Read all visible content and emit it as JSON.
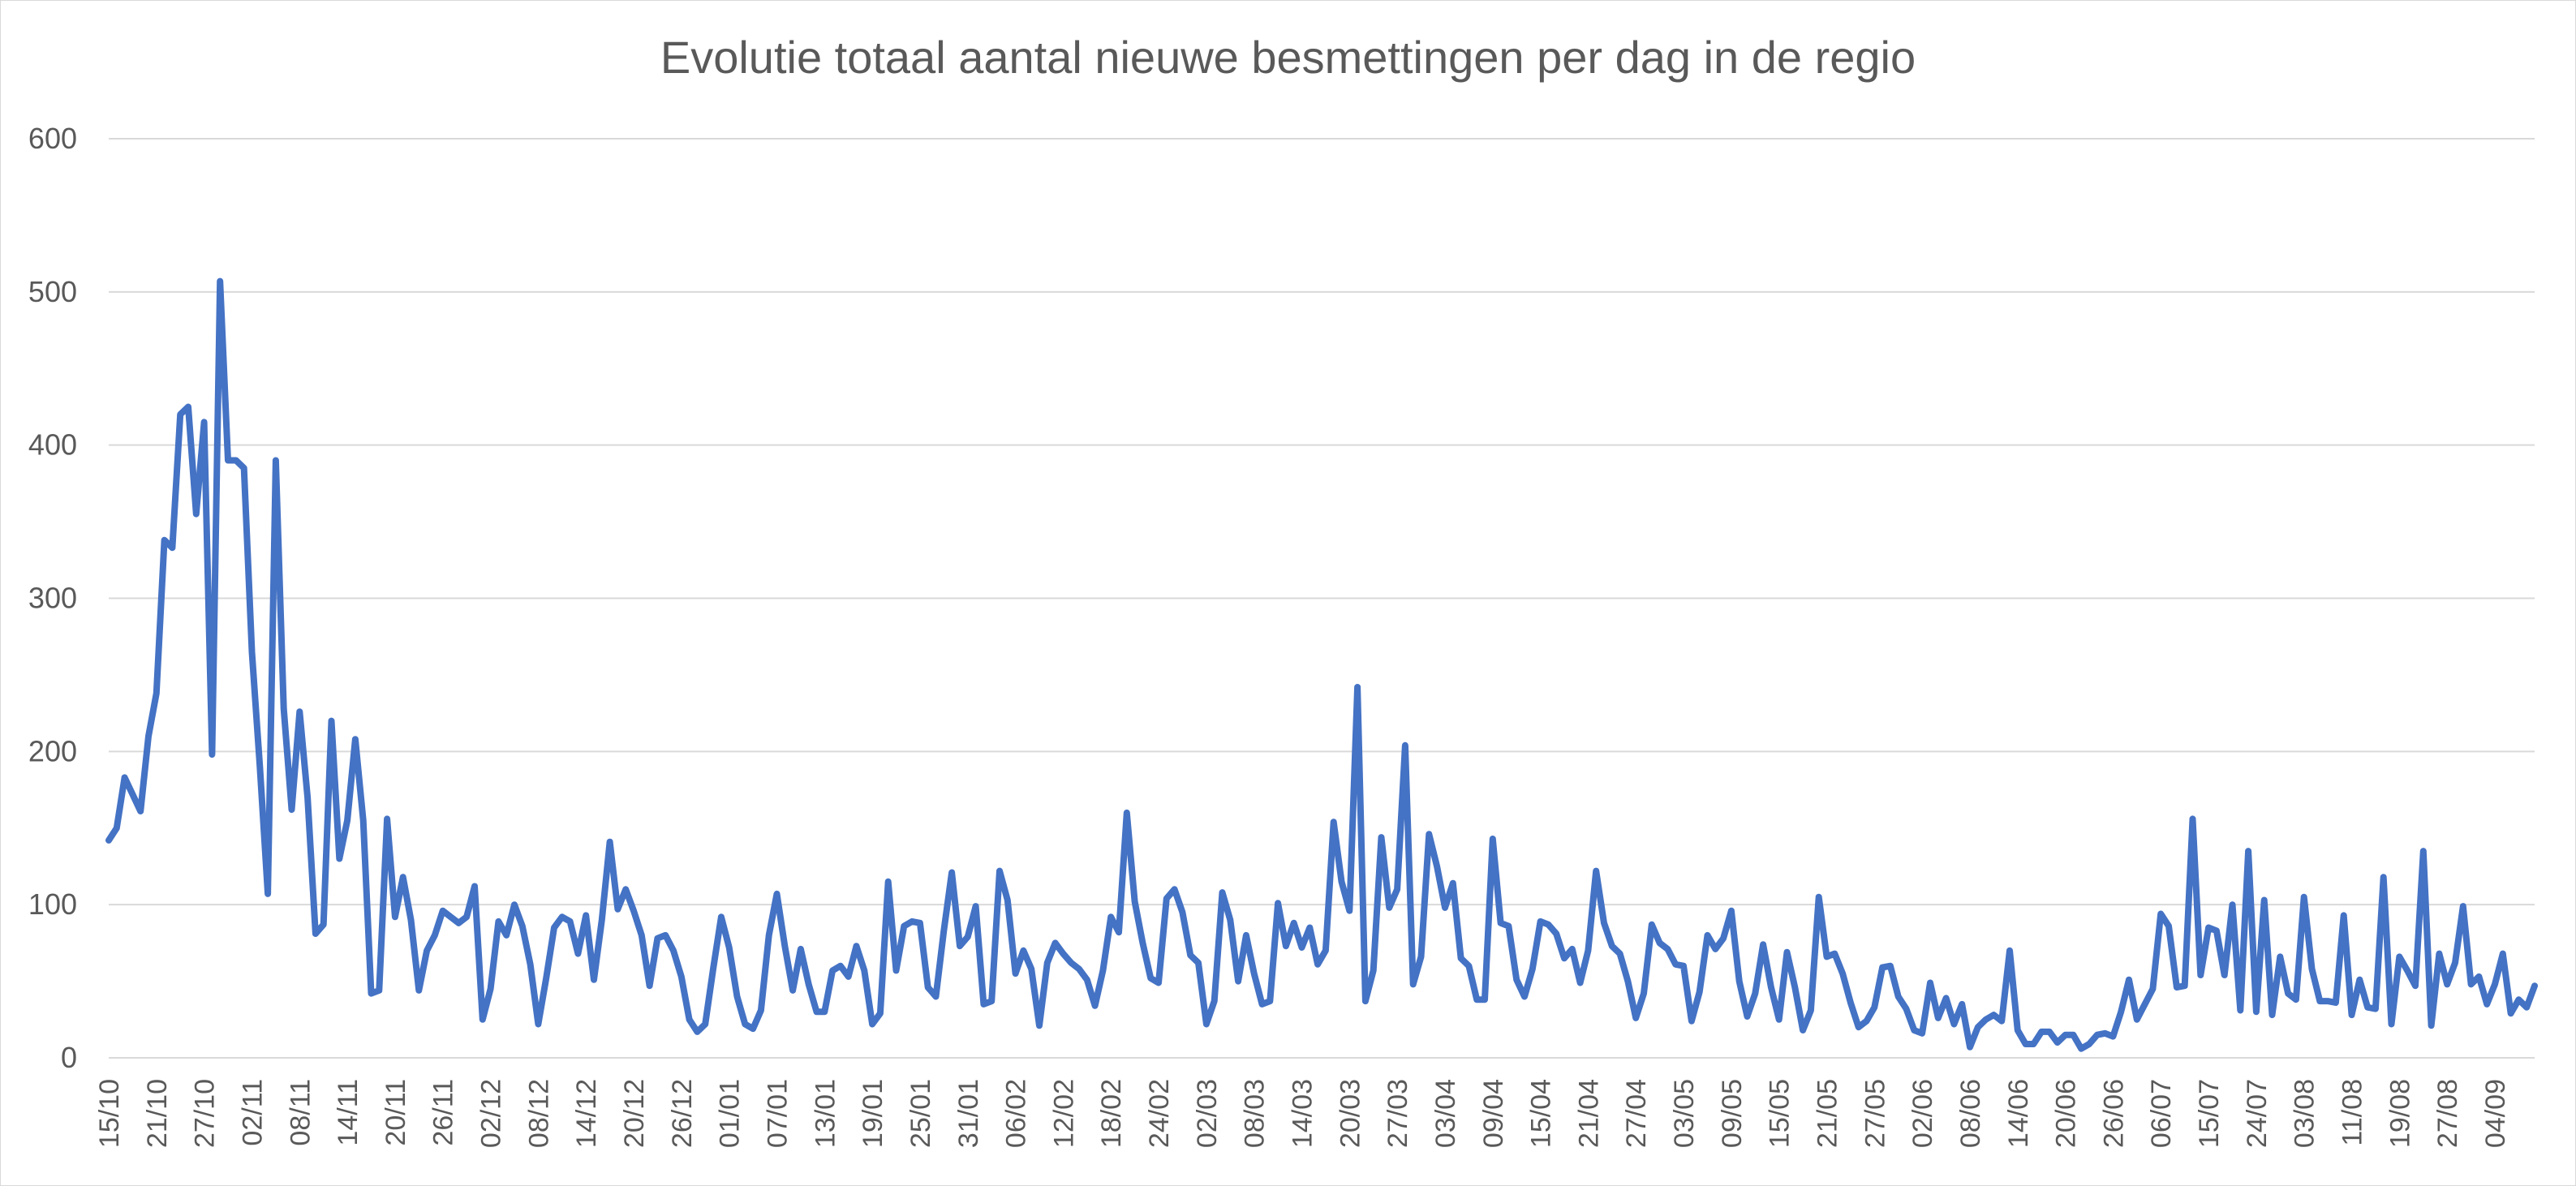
{
  "chart_data": {
    "type": "line",
    "title": "Evolutie totaal aantal nieuwe besmettingen per dag in de regio",
    "xlabel": "",
    "ylabel": "",
    "ylim": [
      0,
      600
    ],
    "y_ticks": [
      0,
      100,
      200,
      300,
      400,
      500,
      600
    ],
    "grid": true,
    "legend": "none",
    "x_tick_labels": [
      "15/10",
      "21/10",
      "27/10",
      "02/11",
      "08/11",
      "14/11",
      "20/11",
      "26/11",
      "02/12",
      "08/12",
      "14/12",
      "20/12",
      "26/12",
      "01/01",
      "07/01",
      "13/01",
      "19/01",
      "25/01",
      "31/01",
      "06/02",
      "12/02",
      "18/02",
      "24/02",
      "02/03",
      "08/03",
      "14/03",
      "20/03",
      "27/03",
      "03/04",
      "09/04",
      "15/04",
      "21/04",
      "27/04",
      "03/05",
      "09/05",
      "15/05",
      "21/05",
      "27/05",
      "02/06",
      "08/06",
      "14/06",
      "20/06",
      "26/06",
      "06/07",
      "15/07",
      "24/07",
      "03/08",
      "11/08",
      "19/08",
      "27/08",
      "04/09"
    ],
    "series": [
      {
        "color": "#4472c4",
        "values": [
          142,
          150,
          183,
          172,
          161,
          210,
          238,
          338,
          333,
          420,
          425,
          355,
          415,
          198,
          507,
          390,
          390,
          385,
          265,
          190,
          107,
          390,
          228,
          162,
          226,
          170,
          81,
          87,
          220,
          130,
          155,
          208,
          155,
          42,
          44,
          156,
          92,
          118,
          90,
          44,
          70,
          80,
          96,
          92,
          88,
          92,
          112,
          25,
          45,
          89,
          80,
          100,
          86,
          61,
          22,
          52,
          85,
          92,
          89,
          68,
          93,
          51,
          90,
          141,
          97,
          110,
          96,
          80,
          47,
          78,
          80,
          70,
          53,
          25,
          17,
          22,
          58,
          92,
          72,
          40,
          22,
          19,
          31,
          80,
          107,
          73,
          44,
          71,
          48,
          30,
          30,
          57,
          60,
          53,
          73,
          57,
          22,
          29,
          115,
          57,
          86,
          89,
          88,
          46,
          40,
          83,
          121,
          73,
          79,
          99,
          35,
          37,
          122,
          103,
          55,
          70,
          58,
          21,
          62,
          75,
          68,
          62,
          58,
          51,
          34,
          57,
          92,
          82,
          160,
          102,
          75,
          52,
          49,
          104,
          110,
          95,
          67,
          62,
          22,
          37,
          108,
          90,
          50,
          80,
          55,
          35,
          37,
          101,
          73,
          88,
          72,
          85,
          61,
          70,
          154,
          115,
          96,
          242,
          37,
          57,
          144,
          98,
          110,
          204,
          48,
          66,
          146,
          125,
          98,
          114,
          65,
          60,
          38,
          38,
          143,
          88,
          86,
          51,
          40,
          58,
          89,
          87,
          81,
          65,
          71,
          49,
          70,
          122,
          88,
          73,
          68,
          50,
          26,
          42,
          87,
          75,
          71,
          61,
          60,
          24,
          43,
          80,
          71,
          78,
          96,
          50,
          27,
          42,
          74,
          46,
          25,
          69,
          46,
          18,
          31,
          105,
          66,
          68,
          55,
          36,
          20,
          24,
          33,
          59,
          60,
          40,
          32,
          18,
          16,
          49,
          26,
          39,
          22,
          35,
          7,
          20,
          25,
          28,
          24,
          70,
          18,
          9,
          9,
          17,
          17,
          10,
          15,
          15,
          6,
          9,
          15,
          16,
          14,
          30,
          51,
          25,
          35,
          45,
          94,
          86,
          46,
          47,
          156,
          54,
          85,
          83,
          54,
          100,
          31,
          135,
          30,
          103,
          28,
          66,
          42,
          38,
          105,
          58,
          37,
          37,
          36,
          93,
          28,
          51,
          33,
          32,
          118,
          22,
          66,
          57,
          47,
          135,
          21,
          68,
          48,
          62,
          99,
          48,
          53,
          35,
          48,
          68,
          29,
          38,
          33,
          47
        ]
      }
    ]
  }
}
